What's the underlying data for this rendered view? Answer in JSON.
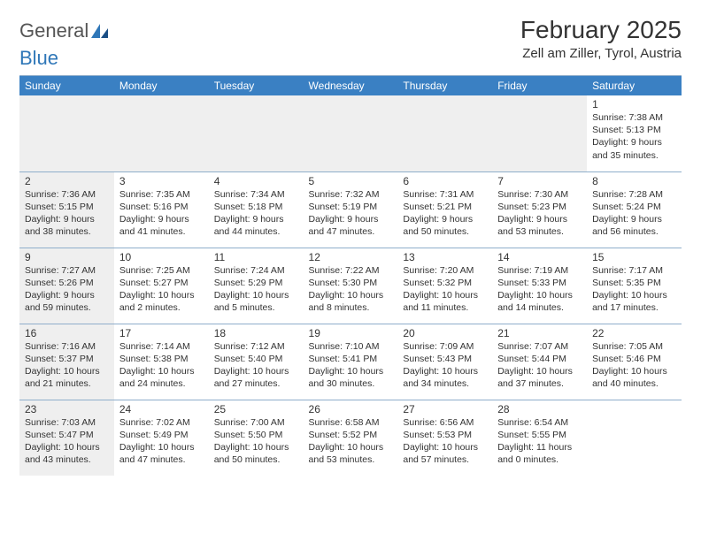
{
  "logo": {
    "text1": "General",
    "text2": "Blue"
  },
  "title": "February 2025",
  "location": "Zell am Ziller, Tyrol, Austria",
  "colors": {
    "header_bg": "#3a80c3",
    "header_text": "#ffffff",
    "border": "#8faecb",
    "shade": "#efefef",
    "text": "#333333",
    "logo_gray": "#555555",
    "logo_blue": "#2f77b8"
  },
  "days_of_week": [
    "Sunday",
    "Monday",
    "Tuesday",
    "Wednesday",
    "Thursday",
    "Friday",
    "Saturday"
  ],
  "weeks": [
    [
      null,
      null,
      null,
      null,
      null,
      null,
      {
        "n": "1",
        "sr": "7:38 AM",
        "ss": "5:13 PM",
        "dl": "9 hours and 35 minutes."
      }
    ],
    [
      {
        "n": "2",
        "sr": "7:36 AM",
        "ss": "5:15 PM",
        "dl": "9 hours and 38 minutes."
      },
      {
        "n": "3",
        "sr": "7:35 AM",
        "ss": "5:16 PM",
        "dl": "9 hours and 41 minutes."
      },
      {
        "n": "4",
        "sr": "7:34 AM",
        "ss": "5:18 PM",
        "dl": "9 hours and 44 minutes."
      },
      {
        "n": "5",
        "sr": "7:32 AM",
        "ss": "5:19 PM",
        "dl": "9 hours and 47 minutes."
      },
      {
        "n": "6",
        "sr": "7:31 AM",
        "ss": "5:21 PM",
        "dl": "9 hours and 50 minutes."
      },
      {
        "n": "7",
        "sr": "7:30 AM",
        "ss": "5:23 PM",
        "dl": "9 hours and 53 minutes."
      },
      {
        "n": "8",
        "sr": "7:28 AM",
        "ss": "5:24 PM",
        "dl": "9 hours and 56 minutes."
      }
    ],
    [
      {
        "n": "9",
        "sr": "7:27 AM",
        "ss": "5:26 PM",
        "dl": "9 hours and 59 minutes."
      },
      {
        "n": "10",
        "sr": "7:25 AM",
        "ss": "5:27 PM",
        "dl": "10 hours and 2 minutes."
      },
      {
        "n": "11",
        "sr": "7:24 AM",
        "ss": "5:29 PM",
        "dl": "10 hours and 5 minutes."
      },
      {
        "n": "12",
        "sr": "7:22 AM",
        "ss": "5:30 PM",
        "dl": "10 hours and 8 minutes."
      },
      {
        "n": "13",
        "sr": "7:20 AM",
        "ss": "5:32 PM",
        "dl": "10 hours and 11 minutes."
      },
      {
        "n": "14",
        "sr": "7:19 AM",
        "ss": "5:33 PM",
        "dl": "10 hours and 14 minutes."
      },
      {
        "n": "15",
        "sr": "7:17 AM",
        "ss": "5:35 PM",
        "dl": "10 hours and 17 minutes."
      }
    ],
    [
      {
        "n": "16",
        "sr": "7:16 AM",
        "ss": "5:37 PM",
        "dl": "10 hours and 21 minutes."
      },
      {
        "n": "17",
        "sr": "7:14 AM",
        "ss": "5:38 PM",
        "dl": "10 hours and 24 minutes."
      },
      {
        "n": "18",
        "sr": "7:12 AM",
        "ss": "5:40 PM",
        "dl": "10 hours and 27 minutes."
      },
      {
        "n": "19",
        "sr": "7:10 AM",
        "ss": "5:41 PM",
        "dl": "10 hours and 30 minutes."
      },
      {
        "n": "20",
        "sr": "7:09 AM",
        "ss": "5:43 PM",
        "dl": "10 hours and 34 minutes."
      },
      {
        "n": "21",
        "sr": "7:07 AM",
        "ss": "5:44 PM",
        "dl": "10 hours and 37 minutes."
      },
      {
        "n": "22",
        "sr": "7:05 AM",
        "ss": "5:46 PM",
        "dl": "10 hours and 40 minutes."
      }
    ],
    [
      {
        "n": "23",
        "sr": "7:03 AM",
        "ss": "5:47 PM",
        "dl": "10 hours and 43 minutes."
      },
      {
        "n": "24",
        "sr": "7:02 AM",
        "ss": "5:49 PM",
        "dl": "10 hours and 47 minutes."
      },
      {
        "n": "25",
        "sr": "7:00 AM",
        "ss": "5:50 PM",
        "dl": "10 hours and 50 minutes."
      },
      {
        "n": "26",
        "sr": "6:58 AM",
        "ss": "5:52 PM",
        "dl": "10 hours and 53 minutes."
      },
      {
        "n": "27",
        "sr": "6:56 AM",
        "ss": "5:53 PM",
        "dl": "10 hours and 57 minutes."
      },
      {
        "n": "28",
        "sr": "6:54 AM",
        "ss": "5:55 PM",
        "dl": "11 hours and 0 minutes."
      },
      null
    ]
  ],
  "labels": {
    "sunrise": "Sunrise:",
    "sunset": "Sunset:",
    "daylight": "Daylight:"
  }
}
